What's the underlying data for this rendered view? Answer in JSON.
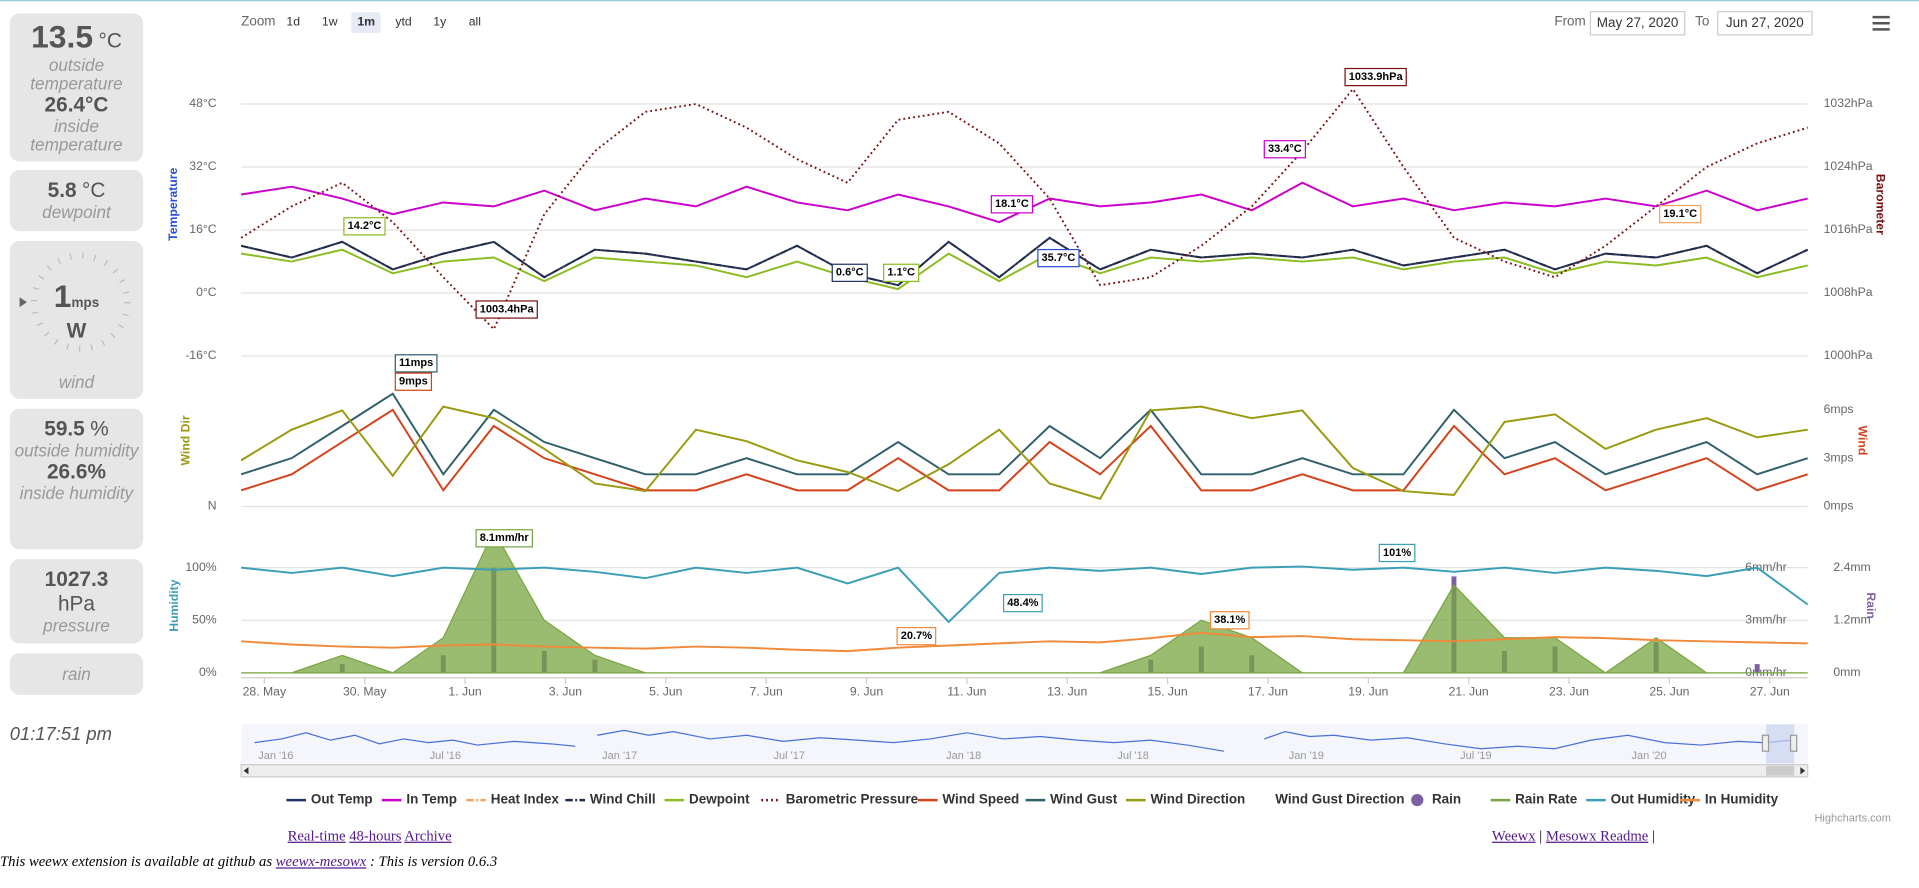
{
  "sidebar": {
    "temperature": {
      "value": "13.5",
      "unit": "°C",
      "label": "outside temperature",
      "inside": "26.4°C",
      "inside_label": "inside temperature"
    },
    "dewpoint": {
      "value": "5.8",
      "unit": "°C",
      "label": "dewpoint"
    },
    "wind": {
      "value": "1",
      "unit": "mps",
      "direction": "W",
      "label": "wind"
    },
    "humidity": {
      "value": "59.5",
      "unit": "%",
      "label": "outside humidity",
      "inside": "26.6%",
      "inside_label": "inside humidity"
    },
    "pressure": {
      "value": "1027.3",
      "unit": "hPa",
      "label": "pressure"
    },
    "rain": {
      "label": "rain"
    },
    "time": "01:17:51 pm"
  },
  "toolbar": {
    "zoom_label": "Zoom",
    "zoom_buttons": [
      "1d",
      "1w",
      "1m",
      "ytd",
      "1y",
      "all"
    ],
    "active_zoom": "1m",
    "from_label": "From",
    "from": "May 27, 2020",
    "to_label": "To",
    "to": "Jun 27, 2020"
  },
  "chart_data": [
    {
      "type": "line",
      "ylabel": "Temperature",
      "ylabel_color": "#2a4fd8",
      "y2label": "Barometer",
      "y2label_color": "#7a1010",
      "grid": true,
      "ylim": [
        -16,
        48
      ],
      "yticks": [
        {
          "value": -16,
          "label": "-16°C"
        },
        {
          "value": 0,
          "label": "0°C"
        },
        {
          "value": 16,
          "label": "16°C"
        },
        {
          "value": 32,
          "label": "32°C"
        },
        {
          "value": 48,
          "label": "48°C"
        }
      ],
      "y2lim": [
        1000,
        1032
      ],
      "y2ticks": [
        {
          "value": 1000,
          "label": "1000hPa"
        },
        {
          "value": 1008,
          "label": "1008hPa"
        },
        {
          "value": 1016,
          "label": "1016hPa"
        },
        {
          "value": 1024,
          "label": "1024hPa"
        },
        {
          "value": 1032,
          "label": "1032hPa"
        }
      ],
      "series": [
        {
          "name": "Out Temp",
          "color": "#1f3466",
          "values": [
            12,
            9,
            13,
            6,
            10,
            13,
            4,
            11,
            10,
            8,
            6,
            12,
            5,
            2,
            13,
            4,
            14,
            6,
            11,
            9,
            10,
            9,
            11,
            7,
            9,
            11,
            6,
            10,
            9,
            12,
            5,
            11
          ]
        },
        {
          "name": "In Temp",
          "color": "#cc00cc",
          "values": [
            25,
            27,
            24,
            20,
            23,
            22,
            26,
            21,
            24,
            22,
            27,
            23,
            21,
            25,
            22,
            18,
            24,
            22,
            23,
            25,
            21,
            28,
            22,
            24,
            21,
            23,
            22,
            24,
            22,
            26,
            21,
            24
          ]
        },
        {
          "name": "Heat Index",
          "color": "#f7a35c",
          "dash": "dashdot",
          "values": [
            12,
            9,
            13,
            6,
            10,
            13,
            4,
            11,
            10,
            8,
            6,
            12,
            5,
            2,
            13,
            4,
            14,
            6,
            11,
            9,
            10,
            9,
            11,
            7,
            9,
            11,
            6,
            10,
            9,
            12,
            5,
            11
          ]
        },
        {
          "name": "Wind Chill",
          "color": "#1a2a48",
          "dash": "dashdot",
          "values": [
            12,
            9,
            13,
            6,
            10,
            13,
            4,
            11,
            10,
            8,
            6,
            12,
            5,
            2,
            13,
            4,
            14,
            6,
            11,
            9,
            10,
            9,
            11,
            7,
            9,
            11,
            6,
            10,
            9,
            12,
            5,
            11
          ]
        },
        {
          "name": "Dewpoint",
          "color": "#8bbc21",
          "values": [
            10,
            8,
            11,
            5,
            8,
            9,
            3,
            9,
            8,
            7,
            4,
            8,
            4,
            1,
            10,
            3,
            10,
            5,
            9,
            8,
            9,
            8,
            9,
            6,
            8,
            9,
            5,
            8,
            7,
            9,
            4,
            7
          ]
        },
        {
          "name": "Barometric Pressure",
          "color": "#7a1010",
          "dash": "dot",
          "axis": "y2",
          "values": [
            1015,
            1019,
            1022,
            1017,
            1010,
            1003.4,
            1018,
            1026,
            1031,
            1032,
            1029,
            1025,
            1022,
            1030,
            1031,
            1027,
            1020,
            1009,
            1010,
            1014,
            1019,
            1026,
            1033.9,
            1024,
            1015,
            1012,
            1010,
            1014,
            1019,
            1024,
            1027,
            1029
          ]
        }
      ],
      "annotations": [
        "14.2°C",
        "1003.4hPa",
        "0.6°C",
        "1.1°C",
        "18.1°C",
        "35.7°C",
        "33.4°C",
        "1033.9hPa",
        "19.1°C"
      ]
    },
    {
      "type": "line",
      "ylabel": "Wind Dir",
      "ylabel_color": "#9a9a10",
      "y2label": "Wind",
      "y2label_color": "#d4421c",
      "grid": true,
      "ylim": [
        0,
        360
      ],
      "yticks": [
        {
          "value": 0,
          "label": "N"
        }
      ],
      "y2lim": [
        0,
        6
      ],
      "y2ticks": [
        {
          "value": 0,
          "label": "0mps"
        },
        {
          "value": 3,
          "label": "3mps"
        },
        {
          "value": 6,
          "label": "6mps"
        }
      ],
      "series": [
        {
          "name": "Wind Speed",
          "color": "#d4421c",
          "axis": "y2",
          "values": [
            1,
            2,
            4,
            6,
            1,
            5,
            3,
            2,
            1,
            1,
            2,
            1,
            1,
            3,
            1,
            1,
            4,
            2,
            5,
            1,
            1,
            2,
            1,
            1,
            5,
            2,
            3,
            1,
            2,
            3,
            1,
            2
          ]
        },
        {
          "name": "Wind Gust",
          "color": "#2f5f6a",
          "axis": "y2",
          "values": [
            2,
            3,
            5,
            7,
            2,
            6,
            4,
            3,
            2,
            2,
            3,
            2,
            2,
            4,
            2,
            2,
            5,
            3,
            6,
            2,
            2,
            3,
            2,
            2,
            6,
            3,
            4,
            2,
            3,
            4,
            2,
            3
          ]
        },
        {
          "name": "Wind Direction",
          "color": "#9a9a10",
          "values": [
            120,
            200,
            250,
            80,
            260,
            230,
            150,
            60,
            40,
            200,
            170,
            120,
            90,
            40,
            110,
            200,
            60,
            20,
            250,
            260,
            230,
            250,
            100,
            40,
            30,
            220,
            240,
            150,
            200,
            230,
            180,
            200
          ]
        },
        {
          "name": "Wind Gust Direction"
        }
      ],
      "annotations": [
        "11mps",
        "9mps"
      ]
    },
    {
      "type": "line",
      "ylabel": "Humidity",
      "ylabel_color": "#3a9fb5",
      "y3label": "Rain",
      "y3label_color": "#7d5fa3",
      "grid": true,
      "ylim": [
        0,
        100
      ],
      "yticks": [
        {
          "value": 0,
          "label": "0%"
        },
        {
          "value": 50,
          "label": "50%"
        },
        {
          "value": 100,
          "label": "100%"
        }
      ],
      "y2lim": [
        0,
        6
      ],
      "y2ticks": [
        {
          "value": 0,
          "label": "0mm/hr"
        },
        {
          "value": 3,
          "label": "3mm/hr"
        },
        {
          "value": 6,
          "label": "6mm/hr"
        }
      ],
      "y3lim": [
        0,
        2.4
      ],
      "y3ticks": [
        {
          "value": 0,
          "label": "0mm"
        },
        {
          "value": 1.2,
          "label": "1.2mm"
        },
        {
          "value": 2.4,
          "label": "2.4mm"
        }
      ],
      "xticks": [
        "28. May",
        "30. May",
        "1. Jun",
        "3. Jun",
        "5. Jun",
        "7. Jun",
        "9. Jun",
        "11. Jun",
        "13. Jun",
        "15. Jun",
        "17. Jun",
        "19. Jun",
        "21. Jun",
        "23. Jun",
        "25. Jun",
        "27. Jun"
      ],
      "series": [
        {
          "name": "Rain",
          "color": "#7d5fa3",
          "type": "column",
          "axis": "y3",
          "values": [
            0,
            0,
            0.2,
            0,
            0.4,
            2.4,
            0.5,
            0.3,
            0,
            0,
            0,
            0,
            0,
            0,
            0,
            0,
            0,
            0,
            0.3,
            0.6,
            0.4,
            0,
            0,
            0,
            2.2,
            0.5,
            0.6,
            0,
            0.7,
            0,
            0.2,
            0
          ]
        },
        {
          "name": "Rain Rate",
          "color": "#77a641",
          "type": "area",
          "axis": "y2",
          "values": [
            0,
            0,
            1,
            0,
            2,
            8.1,
            3,
            1,
            0,
            0,
            0,
            0,
            0,
            0,
            0,
            0,
            0,
            0,
            1,
            3,
            2,
            0,
            0,
            0,
            5,
            2,
            2,
            0,
            2,
            0,
            0,
            0
          ]
        },
        {
          "name": "Out Humidity",
          "color": "#3a9fb5",
          "values": [
            100,
            95,
            100,
            92,
            100,
            98,
            100,
            96,
            90,
            100,
            95,
            100,
            85,
            100,
            48.4,
            95,
            100,
            97,
            100,
            94,
            100,
            101,
            98,
            100,
            96,
            100,
            95,
            100,
            97,
            92,
            100,
            65
          ]
        },
        {
          "name": "In Humidity",
          "color": "#f08a3a",
          "values": [
            30,
            27,
            25,
            24,
            26,
            27,
            25,
            24,
            23,
            25,
            24,
            22,
            20.7,
            24,
            26,
            28,
            30,
            29,
            33,
            38.1,
            34,
            35,
            32,
            31,
            30,
            32,
            34,
            33,
            31,
            30,
            29,
            28
          ]
        }
      ],
      "annotations": [
        "8.1mm/hr",
        "48.4%",
        "20.7%",
        "38.1%",
        "101%"
      ]
    }
  ],
  "navigator": {
    "labels": [
      "Jan '16",
      "Jul '16",
      "Jan '17",
      "Jul '17",
      "Jan '18",
      "Jul '18",
      "Jan '19",
      "Jul '19",
      "Jan '20"
    ]
  },
  "credits": "Highcharts.com",
  "footer": {
    "left_links": [
      "Real-time",
      "48-hours",
      "Archive"
    ],
    "right_links": [
      "Weewx",
      "Mesowx Readme"
    ],
    "separator": "|",
    "note_before": "This weewx extension is available at github as",
    "note_link": "weewx-mesowx",
    "note_after": ": This is version 0.6.3"
  }
}
